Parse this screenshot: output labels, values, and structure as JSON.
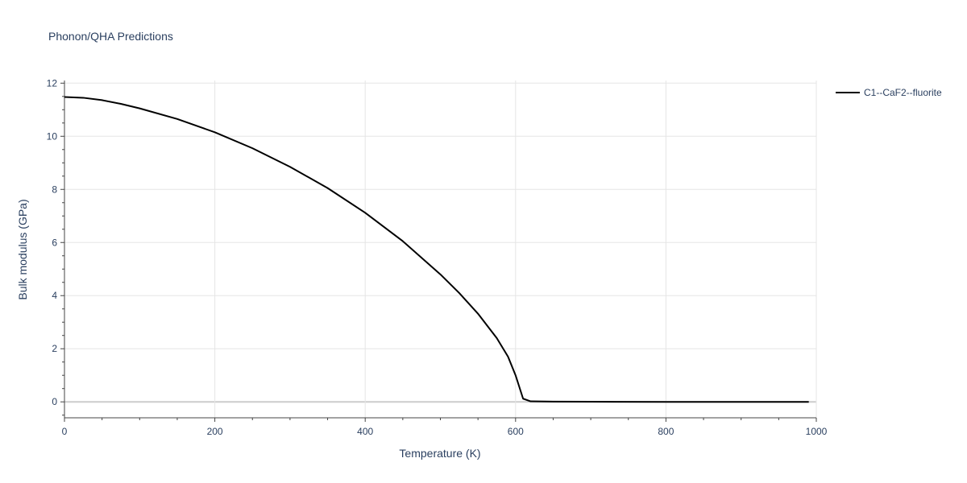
{
  "chart_data": {
    "type": "line",
    "title": "Phonon/QHA Predictions",
    "xlabel": "Temperature (K)",
    "ylabel": "Bulk modulus (GPa)",
    "xlim": [
      0,
      1000
    ],
    "ylim": [
      -0.6,
      12.1
    ],
    "x_ticks": [
      0,
      200,
      400,
      600,
      800,
      1000
    ],
    "y_ticks": [
      0,
      2,
      4,
      6,
      8,
      10,
      12
    ],
    "grid": true,
    "legend_position": "top-right",
    "series": [
      {
        "name": "C1--CaF2--fluorite",
        "color": "#000000",
        "x": [
          0,
          25,
          50,
          75,
          100,
          150,
          200,
          250,
          300,
          350,
          400,
          450,
          500,
          525,
          550,
          575,
          590,
          600,
          610,
          620,
          650,
          700,
          800,
          900,
          990
        ],
        "y": [
          11.48,
          11.45,
          11.36,
          11.22,
          11.05,
          10.65,
          10.15,
          9.55,
          8.85,
          8.05,
          7.12,
          6.05,
          4.8,
          4.1,
          3.32,
          2.4,
          1.7,
          1.0,
          0.12,
          0.02,
          0.01,
          0.005,
          0.0,
          0.0,
          0.0
        ]
      }
    ]
  }
}
